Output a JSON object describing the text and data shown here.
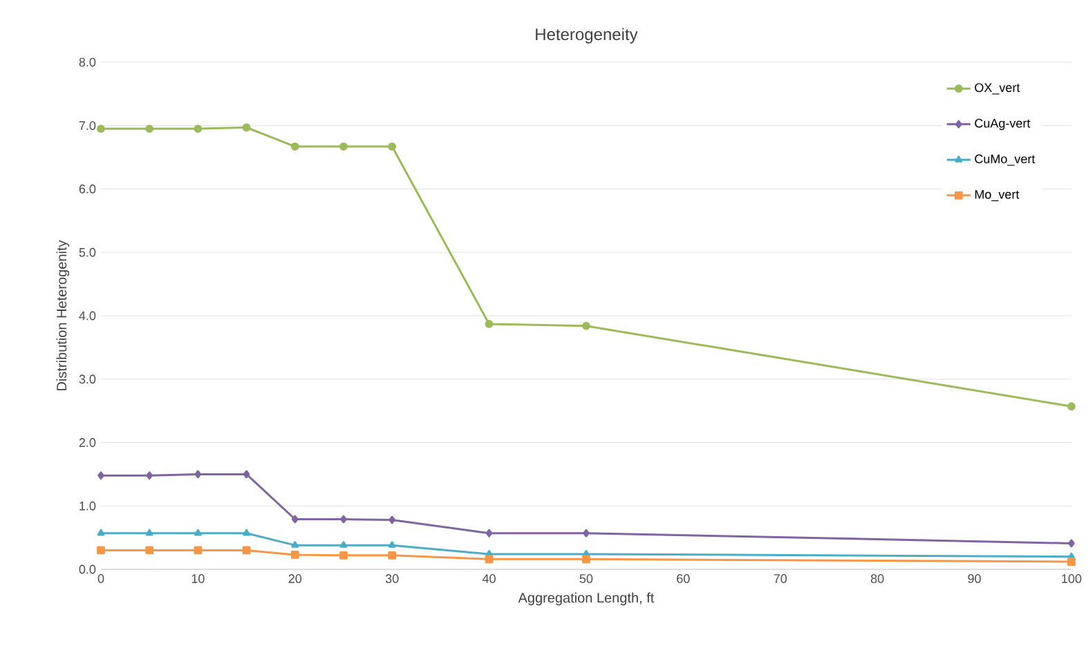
{
  "chart_data": {
    "type": "line",
    "title": "Heterogeneity",
    "xlabel": "Aggregation Length, ft",
    "ylabel": "Distribution Heterogenity",
    "x": [
      0,
      5,
      10,
      15,
      20,
      25,
      30,
      40,
      50,
      100
    ],
    "series": [
      {
        "name": "OX_vert",
        "color": "#9bbb59",
        "marker": "circle",
        "values": [
          6.95,
          6.95,
          6.95,
          6.97,
          6.67,
          6.67,
          6.67,
          3.87,
          3.84,
          2.57
        ]
      },
      {
        "name": "CuAg-vert",
        "color": "#8064a2",
        "marker": "diamond",
        "values": [
          1.48,
          1.48,
          1.5,
          1.5,
          0.79,
          0.79,
          0.78,
          0.57,
          0.57,
          0.41
        ]
      },
      {
        "name": "CuMo_vert",
        "color": "#4bacc6",
        "marker": "triangle",
        "values": [
          0.57,
          0.57,
          0.57,
          0.57,
          0.38,
          0.38,
          0.38,
          0.24,
          0.24,
          0.2
        ]
      },
      {
        "name": "Mo_vert",
        "color": "#f79646",
        "marker": "square",
        "values": [
          0.3,
          0.3,
          0.3,
          0.3,
          0.23,
          0.22,
          0.22,
          0.16,
          0.16,
          0.12
        ]
      }
    ],
    "xlim": [
      0,
      100
    ],
    "xticks": [
      0,
      10,
      20,
      30,
      40,
      50,
      60,
      70,
      80,
      90,
      100
    ],
    "ylim": [
      0,
      8
    ],
    "yticks": [
      {
        "value": 0,
        "label": "0.0"
      },
      {
        "value": 1,
        "label": "1.0"
      },
      {
        "value": 2,
        "label": "2.0"
      },
      {
        "value": 3,
        "label": "3.0"
      },
      {
        "value": 4,
        "label": "4.0"
      },
      {
        "value": 5,
        "label": "5.0"
      },
      {
        "value": 6,
        "label": "6.0"
      },
      {
        "value": 7,
        "label": "7.0"
      },
      {
        "value": 8,
        "label": "8.0"
      }
    ],
    "grid": "y",
    "legend": "top right",
    "line_style": "solid"
  }
}
